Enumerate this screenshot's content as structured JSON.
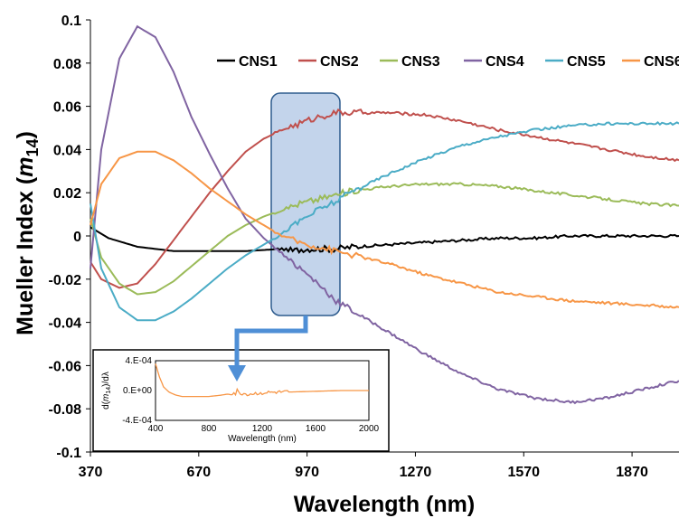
{
  "chart_data": {
    "type": "line",
    "xlabel": "Wavelength (nm)",
    "ylabel_main": "Mueller Index (",
    "ylabel_var": "m",
    "ylabel_sub": "14",
    "ylabel_end": ")",
    "xlim": [
      370,
      2000
    ],
    "ylim": [
      -0.1,
      0.1
    ],
    "x_ticks": [
      "370",
      "670",
      "970",
      "1270",
      "1570",
      "1870"
    ],
    "y_ticks": [
      "0.1",
      "0.08",
      "0.06",
      "0.04",
      "0.02",
      "0",
      "-0.02",
      "-0.04",
      "-0.06",
      "-0.08",
      "-0.1"
    ],
    "legend_position": "top-right",
    "series": [
      {
        "name": "CNS1",
        "color": "#000000",
        "x": [
          370,
          420,
          500,
          600,
          700,
          800,
          900,
          930,
          960,
          1000,
          1050,
          1100,
          1200,
          1300,
          1400,
          1500,
          1600,
          1700,
          1800,
          1900,
          2000
        ],
        "y": [
          0.004,
          -0.001,
          -0.005,
          -0.007,
          -0.007,
          -0.007,
          -0.006,
          -0.007,
          -0.006,
          -0.006,
          -0.006,
          -0.005,
          -0.004,
          -0.003,
          -0.002,
          -0.001,
          -0.001,
          0.0,
          0.0,
          0.0,
          0.0
        ]
      },
      {
        "name": "CNS2",
        "color": "#c0504d",
        "x": [
          370,
          400,
          450,
          500,
          550,
          600,
          650,
          700,
          750,
          800,
          850,
          900,
          950,
          1000,
          1050,
          1100,
          1150,
          1200,
          1300,
          1400,
          1500,
          1600,
          1700,
          1800,
          1900,
          2000
        ],
        "y": [
          -0.012,
          -0.02,
          -0.024,
          -0.022,
          -0.013,
          -0.002,
          0.009,
          0.02,
          0.03,
          0.039,
          0.045,
          0.049,
          0.052,
          0.055,
          0.057,
          0.057,
          0.057,
          0.057,
          0.056,
          0.053,
          0.049,
          0.046,
          0.043,
          0.04,
          0.037,
          0.035
        ]
      },
      {
        "name": "CNS3",
        "color": "#9bbb59",
        "x": [
          370,
          400,
          450,
          500,
          550,
          600,
          650,
          700,
          750,
          800,
          850,
          900,
          950,
          1000,
          1050,
          1100,
          1150,
          1200,
          1300,
          1400,
          1500,
          1600,
          1700,
          1800,
          1900,
          2000
        ],
        "y": [
          0.008,
          -0.01,
          -0.022,
          -0.027,
          -0.026,
          -0.021,
          -0.014,
          -0.007,
          0.0,
          0.005,
          0.009,
          0.012,
          0.015,
          0.017,
          0.019,
          0.021,
          0.022,
          0.023,
          0.024,
          0.024,
          0.023,
          0.021,
          0.019,
          0.017,
          0.015,
          0.014
        ]
      },
      {
        "name": "CNS4",
        "color": "#8064a2",
        "x": [
          370,
          400,
          450,
          500,
          550,
          600,
          650,
          700,
          750,
          800,
          850,
          900,
          950,
          1000,
          1050,
          1100,
          1200,
          1300,
          1400,
          1500,
          1600,
          1700,
          1800,
          1900,
          2000
        ],
        "y": [
          -0.015,
          0.04,
          0.082,
          0.097,
          0.092,
          0.076,
          0.055,
          0.038,
          0.022,
          0.008,
          -0.001,
          -0.008,
          -0.015,
          -0.022,
          -0.03,
          -0.035,
          -0.045,
          -0.055,
          -0.064,
          -0.071,
          -0.075,
          -0.077,
          -0.075,
          -0.071,
          -0.067
        ]
      },
      {
        "name": "CNS5",
        "color": "#4bacc6",
        "x": [
          370,
          400,
          450,
          500,
          550,
          600,
          650,
          700,
          750,
          800,
          850,
          900,
          950,
          1000,
          1050,
          1100,
          1150,
          1200,
          1300,
          1400,
          1500,
          1600,
          1700,
          1800,
          1900,
          2000
        ],
        "y": [
          0.015,
          -0.015,
          -0.033,
          -0.039,
          -0.039,
          -0.035,
          -0.029,
          -0.022,
          -0.015,
          -0.009,
          -0.004,
          0.001,
          0.007,
          0.012,
          0.016,
          0.021,
          0.025,
          0.029,
          0.036,
          0.042,
          0.046,
          0.049,
          0.051,
          0.052,
          0.052,
          0.052
        ]
      },
      {
        "name": "CNS6",
        "color": "#f79646",
        "x": [
          370,
          400,
          450,
          500,
          550,
          600,
          650,
          700,
          750,
          800,
          850,
          900,
          950,
          1000,
          1050,
          1100,
          1150,
          1200,
          1300,
          1400,
          1500,
          1600,
          1700,
          1800,
          1900,
          2000
        ],
        "y": [
          0.005,
          0.024,
          0.036,
          0.039,
          0.039,
          0.035,
          0.029,
          0.022,
          0.016,
          0.01,
          0.005,
          0.0,
          -0.003,
          -0.005,
          -0.007,
          -0.009,
          -0.011,
          -0.013,
          -0.018,
          -0.022,
          -0.026,
          -0.028,
          -0.03,
          -0.031,
          -0.032,
          -0.033
        ]
      }
    ],
    "inset": {
      "type": "line",
      "xlabel": "Wavelength (nm)",
      "ylabel_prefix": "d(",
      "ylabel_var": "m",
      "ylabel_sub": "14",
      "ylabel_suffix": ")/dλ",
      "xlim": [
        400,
        2000
      ],
      "ylim": [
        -0.0004,
        0.0004
      ],
      "x_ticks": [
        "400",
        "800",
        "1200",
        "1600",
        "2000"
      ],
      "y_ticks": [
        "4.E-04",
        "0.E+00",
        "-4.E-04"
      ],
      "color": "#f79646",
      "x": [
        400,
        430,
        460,
        500,
        550,
        600,
        650,
        700,
        800,
        900,
        1000,
        1100,
        1200,
        1400,
        1600,
        1800,
        2000
      ],
      "y": [
        0.00036,
        0.00018,
        5e-05,
        -2e-05,
        -6e-05,
        -8e-05,
        -8e-05,
        -8e-05,
        -8e-05,
        -6e-05,
        -3e-05,
        -5e-05,
        -3e-05,
        -2e-05,
        -1e-05,
        0.0,
        0.0
      ]
    }
  }
}
